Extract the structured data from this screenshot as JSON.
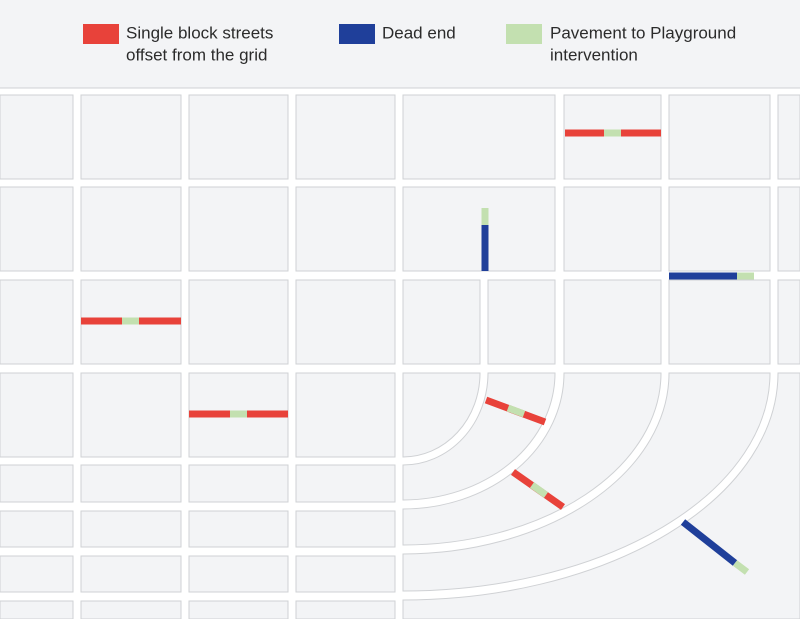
{
  "legend": [
    {
      "lines": [
        "Single block streets",
        "offset from the grid"
      ]
    },
    {
      "lines": [
        "Dead end"
      ]
    },
    {
      "lines": [
        "Pavement to Playground",
        "intervention"
      ]
    }
  ]
}
